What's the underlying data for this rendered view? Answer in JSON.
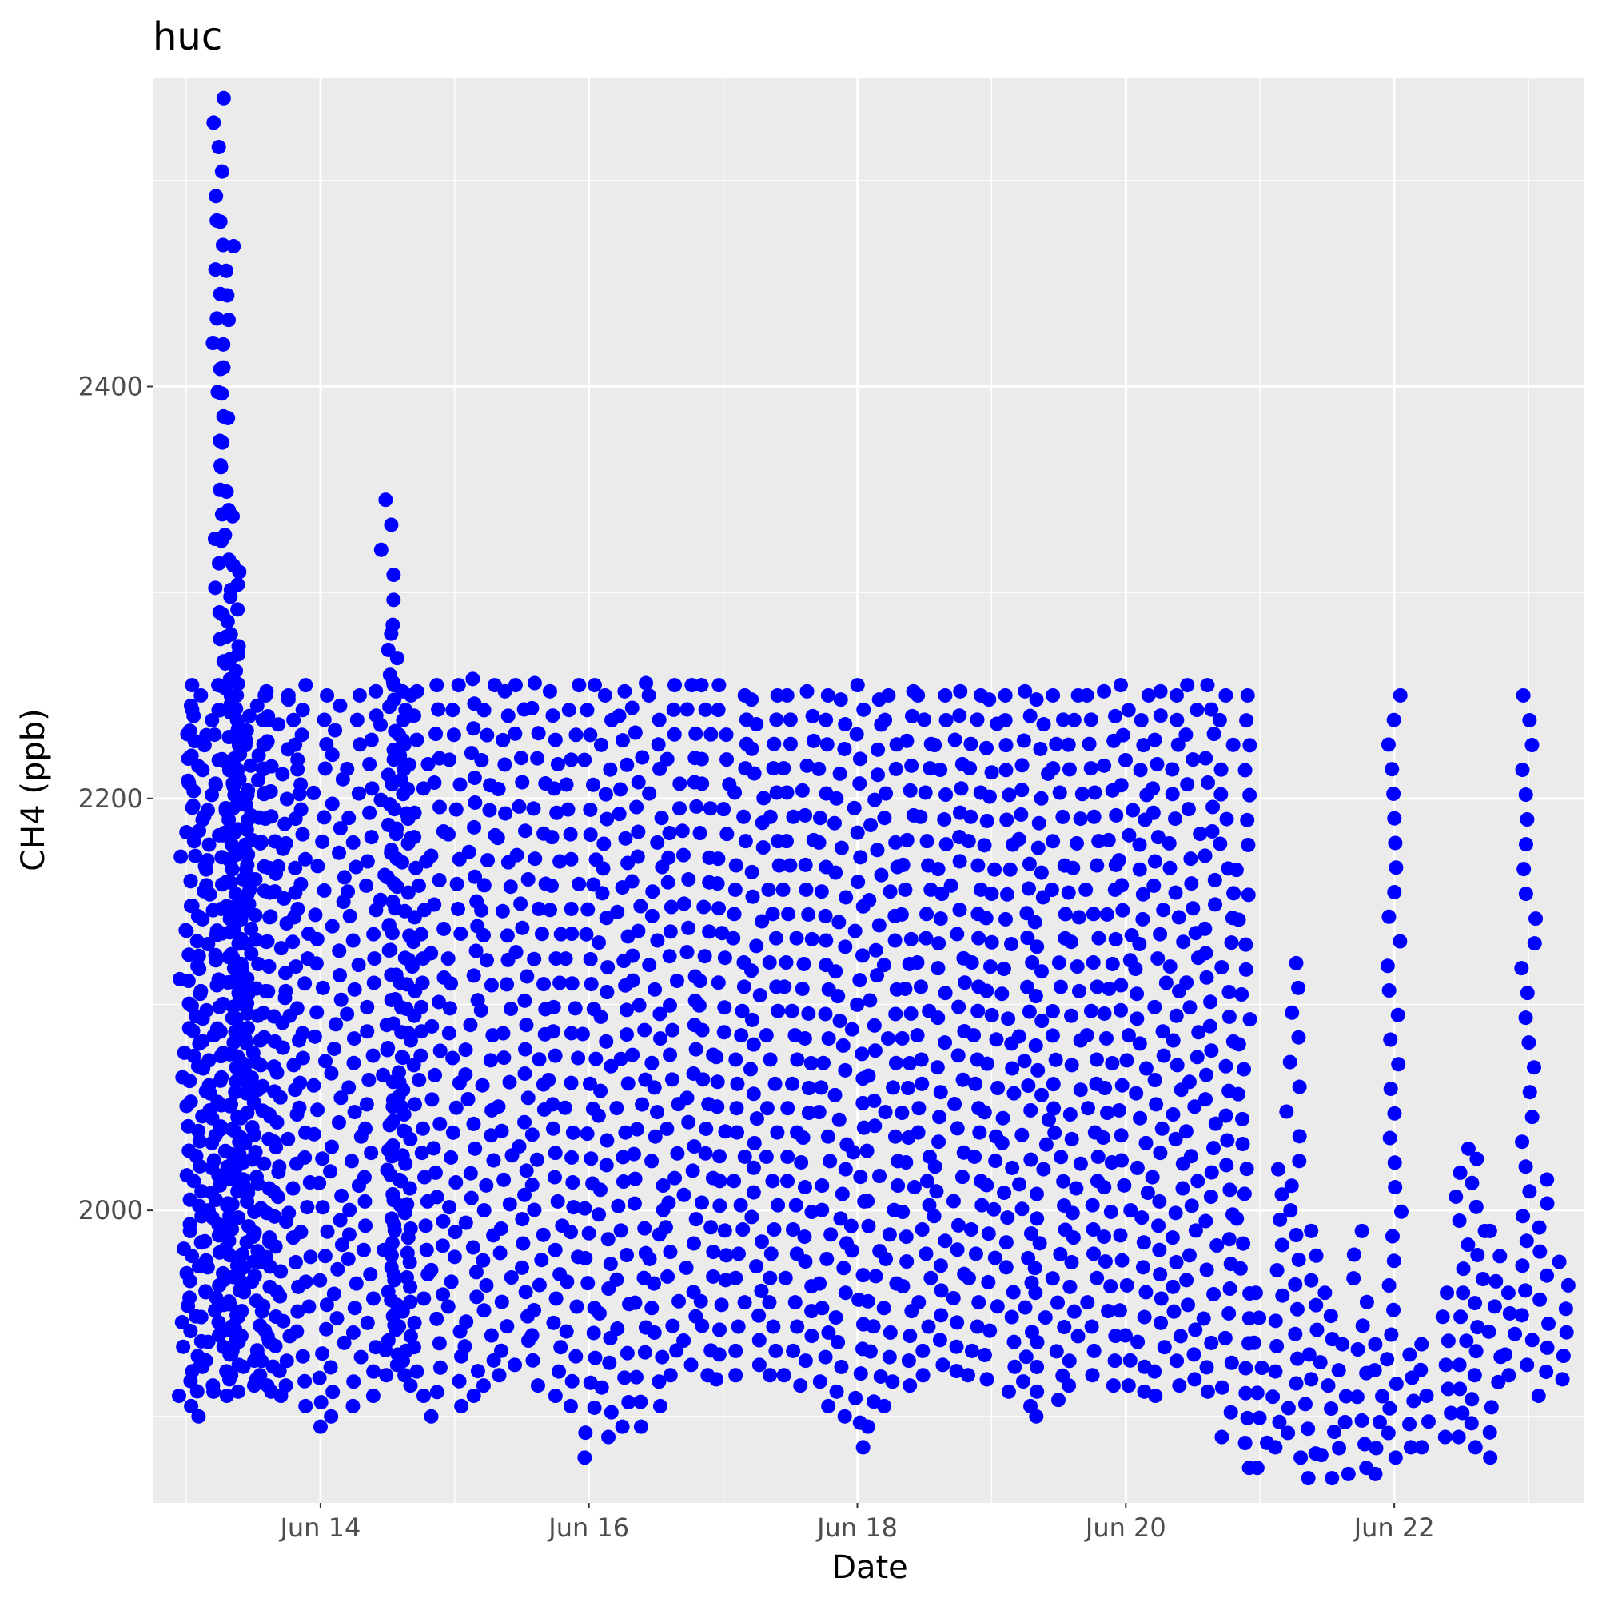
{
  "chart_data": {
    "type": "scatter",
    "title": "huc",
    "xlabel": "Date",
    "ylabel": "CH4 (ppb)",
    "x_tick_labels": [
      "Jun 14",
      "Jun 16",
      "Jun 18",
      "Jun 20",
      "Jun 22"
    ],
    "y_tick_labels": [
      "2000",
      "2200",
      "2400"
    ],
    "x_range": [
      "2023-06-12T18:00",
      "2023-06-23T10:00"
    ],
    "ylim": [
      1858,
      2550
    ],
    "grid": true,
    "legend": "none",
    "colors": {
      "points": "#0000ff",
      "panel": "#ebebeb",
      "grid": "#ffffff"
    },
    "series": [
      {
        "x": [
          "2023-06-13T00:00",
          "2023-06-13T01:12",
          "2023-06-13T02:24",
          "2023-06-13T03:36",
          "2023-06-13T04:48",
          "2023-06-13T06:00",
          "2023-06-13T07:12",
          "2023-06-13T08:00",
          "2023-06-13T08:24",
          "2023-06-13T09:00",
          "2023-06-13T10:00",
          "2023-06-13T11:00",
          "2023-06-13T12:00",
          "2023-06-13T13:00",
          "2023-06-13T14:00",
          "2023-06-13T15:30",
          "2023-06-13T17:00",
          "2023-06-13T19:00",
          "2023-06-13T21:00",
          "2023-06-14T00:00",
          "2023-06-14T03:00",
          "2023-06-14T06:00",
          "2023-06-14T09:00",
          "2023-06-14T12:00",
          "2023-06-14T13:12",
          "2023-06-14T14:00",
          "2023-06-14T15:00",
          "2023-06-14T16:00",
          "2023-06-14T18:00",
          "2023-06-14T21:00",
          "2023-06-15T00:00",
          "2023-06-15T03:00",
          "2023-06-15T06:00",
          "2023-06-15T09:00",
          "2023-06-15T12:00",
          "2023-06-15T15:00",
          "2023-06-15T18:00",
          "2023-06-15T21:00",
          "2023-06-16T00:00",
          "2023-06-16T03:00",
          "2023-06-16T06:00",
          "2023-06-16T09:00",
          "2023-06-16T12:00",
          "2023-06-16T15:00",
          "2023-06-16T18:00",
          "2023-06-16T21:00",
          "2023-06-17T00:00",
          "2023-06-17T03:00",
          "2023-06-17T06:00",
          "2023-06-17T09:00",
          "2023-06-17T12:00",
          "2023-06-17T15:00",
          "2023-06-17T18:00",
          "2023-06-17T21:00",
          "2023-06-18T00:00",
          "2023-06-18T03:00",
          "2023-06-18T06:00",
          "2023-06-18T09:00",
          "2023-06-18T12:00",
          "2023-06-18T15:00",
          "2023-06-18T18:00",
          "2023-06-18T21:00",
          "2023-06-19T00:00",
          "2023-06-19T03:00",
          "2023-06-19T06:00",
          "2023-06-19T09:00",
          "2023-06-19T12:00",
          "2023-06-19T15:00",
          "2023-06-19T18:00",
          "2023-06-19T21:00",
          "2023-06-20T00:00",
          "2023-06-20T03:00",
          "2023-06-20T06:00",
          "2023-06-20T09:00",
          "2023-06-20T12:00",
          "2023-06-20T15:00",
          "2023-06-20T18:00",
          "2023-06-20T21:00",
          "2023-06-21T00:00",
          "2023-06-21T03:00",
          "2023-06-21T06:00",
          "2023-06-21T09:00",
          "2023-06-21T12:00",
          "2023-06-21T15:00",
          "2023-06-21T18:00",
          "2023-06-21T21:00",
          "2023-06-22T00:00",
          "2023-06-22T03:00",
          "2023-06-22T06:00",
          "2023-06-22T09:00",
          "2023-06-22T12:00",
          "2023-06-22T15:00",
          "2023-06-22T18:00",
          "2023-06-22T21:00",
          "2023-06-23T00:00",
          "2023-06-23T03:00",
          "2023-06-23T06:00"
        ],
        "y_min": [
          1910,
          1905,
          1900,
          1912,
          1915,
          1910,
          1920,
          1930,
          1925,
          1918,
          1912,
          1915,
          1920,
          1918,
          1915,
          1912,
          1910,
          1915,
          1905,
          1895,
          1900,
          1905,
          1910,
          1920,
          1925,
          1930,
          1920,
          1915,
          1910,
          1900,
          1905,
          1910,
          1915,
          1920,
          1925,
          1915,
          1910,
          1905,
          1880,
          1890,
          1895,
          1895,
          1905,
          1920,
          1925,
          1920,
          1918,
          1920,
          1925,
          1920,
          1920,
          1915,
          1905,
          1900,
          1885,
          1895,
          1905,
          1915,
          1920,
          1925,
          1922,
          1920,
          1918,
          1912,
          1905,
          1900,
          1908,
          1915,
          1920,
          1915,
          1915,
          1912,
          1910,
          1915,
          1918,
          1912,
          1890,
          1875,
          1875,
          1885,
          1880,
          1870,
          1870,
          1872,
          1875,
          1872,
          1880,
          1885,
          1885,
          1890,
          1890,
          1885,
          1880,
          1920,
          1925,
          1910,
          1918
        ],
        "y_max": [
          2255,
          2245,
          2240,
          2250,
          2255,
          2540,
          2480,
          2340,
          2310,
          2270,
          2250,
          2240,
          2245,
          2250,
          2250,
          2252,
          2248,
          2250,
          2255,
          2250,
          2245,
          2250,
          2252,
          2345,
          2280,
          2255,
          2252,
          2250,
          2252,
          2255,
          2255,
          2258,
          2255,
          2252,
          2255,
          2256,
          2252,
          2255,
          2255,
          2250,
          2252,
          2256,
          2250,
          2255,
          2255,
          2255,
          2255,
          2250,
          2248,
          2250,
          2250,
          2252,
          2250,
          2248,
          2255,
          2248,
          2250,
          2252,
          2250,
          2250,
          2252,
          2250,
          2248,
          2250,
          2252,
          2248,
          2250,
          2250,
          2250,
          2252,
          2255,
          2250,
          2252,
          2250,
          2255,
          2255,
          2250,
          2250,
          1960,
          2020,
          2120,
          1990,
          1960,
          1935,
          1990,
          1935,
          2250,
          1930,
          1935,
          1960,
          2030,
          2025,
          1990,
          1960,
          2250,
          2015,
          1975
        ]
      }
    ]
  }
}
